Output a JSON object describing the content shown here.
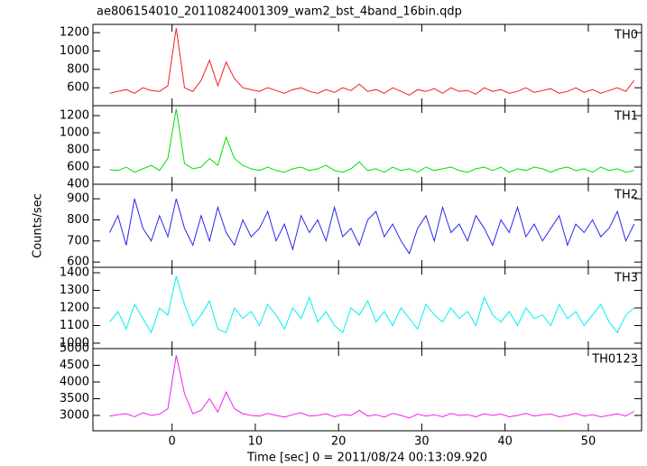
{
  "title": "ae806154010_20110824001309_wam2_bst_4band_16bin.qdp",
  "xlabel": "Time [sec] 0 = 2011/08/24 00:13:09.920",
  "ylabel": "Counts/sec",
  "chart_data": [
    {
      "type": "line",
      "label": "TH0",
      "color": "#f02020",
      "x": [
        -7.5,
        -6.5,
        -5.5,
        -4.5,
        -3.5,
        -2.5,
        -1.5,
        -0.5,
        0.5,
        1.5,
        2.5,
        3.5,
        4.5,
        5.5,
        6.5,
        7.5,
        8.5,
        9.5,
        10.5,
        11.5,
        12.5,
        13.5,
        14.5,
        15.5,
        16.5,
        17.5,
        18.5,
        19.5,
        20.5,
        21.5,
        22.5,
        23.5,
        24.5,
        25.5,
        26.5,
        27.5,
        28.5,
        29.5,
        30.5,
        31.5,
        32.5,
        33.5,
        34.5,
        35.5,
        36.5,
        37.5,
        38.5,
        39.5,
        40.5,
        41.5,
        42.5,
        43.5,
        44.5,
        45.5,
        46.5,
        47.5,
        48.5,
        49.5,
        50.5,
        51.5,
        52.5,
        53.5,
        54.5,
        55.5
      ],
      "values": [
        540,
        560,
        580,
        540,
        600,
        570,
        560,
        620,
        1250,
        600,
        560,
        680,
        900,
        620,
        880,
        700,
        600,
        580,
        560,
        600,
        570,
        540,
        580,
        600,
        560,
        540,
        580,
        550,
        600,
        570,
        640,
        560,
        580,
        540,
        600,
        560,
        520,
        580,
        560,
        590,
        540,
        600,
        560,
        570,
        530,
        600,
        560,
        580,
        540,
        560,
        600,
        550,
        570,
        590,
        540,
        560,
        600,
        550,
        580,
        540,
        570,
        600,
        560,
        680
      ],
      "xlim": [
        -9.5,
        56.4
      ],
      "xticks": [
        0,
        10,
        20,
        30,
        40,
        50
      ],
      "ylim": [
        405,
        1290
      ],
      "yticks": [
        600,
        800,
        1000,
        1200
      ]
    },
    {
      "type": "line",
      "label": "TH1",
      "color": "#00e000",
      "x": [
        -7.5,
        -6.5,
        -5.5,
        -4.5,
        -3.5,
        -2.5,
        -1.5,
        -0.5,
        0.5,
        1.5,
        2.5,
        3.5,
        4.5,
        5.5,
        6.5,
        7.5,
        8.5,
        9.5,
        10.5,
        11.5,
        12.5,
        13.5,
        14.5,
        15.5,
        16.5,
        17.5,
        18.5,
        19.5,
        20.5,
        21.5,
        22.5,
        23.5,
        24.5,
        25.5,
        26.5,
        27.5,
        28.5,
        29.5,
        30.5,
        31.5,
        32.5,
        33.5,
        34.5,
        35.5,
        36.5,
        37.5,
        38.5,
        39.5,
        40.5,
        41.5,
        42.5,
        43.5,
        44.5,
        45.5,
        46.5,
        47.5,
        48.5,
        49.5,
        50.5,
        51.5,
        52.5,
        53.5,
        54.5,
        55.5
      ],
      "values": [
        570,
        560,
        600,
        540,
        580,
        620,
        560,
        700,
        1280,
        640,
        580,
        600,
        700,
        620,
        950,
        700,
        620,
        580,
        560,
        600,
        560,
        540,
        580,
        600,
        560,
        580,
        620,
        560,
        540,
        580,
        660,
        560,
        580,
        540,
        600,
        560,
        580,
        540,
        600,
        560,
        580,
        600,
        560,
        540,
        580,
        600,
        560,
        600,
        540,
        580,
        560,
        600,
        580,
        540,
        580,
        600,
        560,
        580,
        540,
        600,
        560,
        580,
        540,
        560
      ],
      "xlim": [
        -9.5,
        56.4
      ],
      "xticks": [
        0,
        10,
        20,
        30,
        40,
        50
      ],
      "ylim": [
        400,
        1316
      ],
      "yticks": [
        400,
        600,
        800,
        1000,
        1200
      ]
    },
    {
      "type": "line",
      "label": "TH2",
      "color": "#2828f0",
      "x": [
        -7.5,
        -6.5,
        -5.5,
        -4.5,
        -3.5,
        -2.5,
        -1.5,
        -0.5,
        0.5,
        1.5,
        2.5,
        3.5,
        4.5,
        5.5,
        6.5,
        7.5,
        8.5,
        9.5,
        10.5,
        11.5,
        12.5,
        13.5,
        14.5,
        15.5,
        16.5,
        17.5,
        18.5,
        19.5,
        20.5,
        21.5,
        22.5,
        23.5,
        24.5,
        25.5,
        26.5,
        27.5,
        28.5,
        29.5,
        30.5,
        31.5,
        32.5,
        33.5,
        34.5,
        35.5,
        36.5,
        37.5,
        38.5,
        39.5,
        40.5,
        41.5,
        42.5,
        43.5,
        44.5,
        45.5,
        46.5,
        47.5,
        48.5,
        49.5,
        50.5,
        51.5,
        52.5,
        53.5,
        54.5,
        55.5
      ],
      "values": [
        740,
        820,
        680,
        900,
        760,
        700,
        820,
        720,
        900,
        760,
        680,
        820,
        700,
        860,
        740,
        680,
        800,
        720,
        760,
        840,
        700,
        780,
        660,
        820,
        740,
        800,
        700,
        860,
        720,
        760,
        680,
        800,
        840,
        720,
        780,
        700,
        640,
        760,
        820,
        700,
        860,
        740,
        780,
        700,
        820,
        760,
        680,
        800,
        740,
        860,
        720,
        780,
        700,
        760,
        820,
        680,
        780,
        740,
        800,
        720,
        760,
        840,
        700,
        780
      ],
      "xlim": [
        -9.5,
        56.4
      ],
      "xticks": [
        0,
        10,
        20,
        30,
        40,
        50
      ],
      "ylim": [
        575,
        969
      ],
      "yticks": [
        600,
        700,
        800,
        900
      ]
    },
    {
      "type": "line",
      "label": "TH3",
      "color": "#00f0f0",
      "x": [
        -7.5,
        -6.5,
        -5.5,
        -4.5,
        -3.5,
        -2.5,
        -1.5,
        -0.5,
        0.5,
        1.5,
        2.5,
        3.5,
        4.5,
        5.5,
        6.5,
        7.5,
        8.5,
        9.5,
        10.5,
        11.5,
        12.5,
        13.5,
        14.5,
        15.5,
        16.5,
        17.5,
        18.5,
        19.5,
        20.5,
        21.5,
        22.5,
        23.5,
        24.5,
        25.5,
        26.5,
        27.5,
        28.5,
        29.5,
        30.5,
        31.5,
        32.5,
        33.5,
        34.5,
        35.5,
        36.5,
        37.5,
        38.5,
        39.5,
        40.5,
        41.5,
        42.5,
        43.5,
        44.5,
        45.5,
        46.5,
        47.5,
        48.5,
        49.5,
        50.5,
        51.5,
        52.5,
        53.5,
        54.5,
        55.5
      ],
      "values": [
        1120,
        1180,
        1080,
        1220,
        1140,
        1060,
        1200,
        1160,
        1380,
        1220,
        1100,
        1160,
        1240,
        1080,
        1060,
        1200,
        1140,
        1180,
        1100,
        1220,
        1160,
        1080,
        1200,
        1140,
        1260,
        1120,
        1180,
        1100,
        1060,
        1200,
        1160,
        1240,
        1120,
        1180,
        1100,
        1200,
        1140,
        1080,
        1220,
        1160,
        1120,
        1200,
        1140,
        1180,
        1100,
        1260,
        1160,
        1120,
        1180,
        1100,
        1200,
        1140,
        1160,
        1100,
        1220,
        1140,
        1180,
        1100,
        1160,
        1220,
        1120,
        1060,
        1160,
        1200
      ],
      "xlim": [
        -9.5,
        56.4
      ],
      "xticks": [
        0,
        10,
        20,
        30,
        40,
        50
      ],
      "ylim": [
        969,
        1431
      ],
      "yticks": [
        1000,
        1100,
        1200,
        1300,
        1400
      ]
    },
    {
      "type": "line",
      "label": "TH0123",
      "color": "#f020f0",
      "x": [
        -7.5,
        -6.5,
        -5.5,
        -4.5,
        -3.5,
        -2.5,
        -1.5,
        -0.5,
        0.5,
        1.5,
        2.5,
        3.5,
        4.5,
        5.5,
        6.5,
        7.5,
        8.5,
        9.5,
        10.5,
        11.5,
        12.5,
        13.5,
        14.5,
        15.5,
        16.5,
        17.5,
        18.5,
        19.5,
        20.5,
        21.5,
        22.5,
        23.5,
        24.5,
        25.5,
        26.5,
        27.5,
        28.5,
        29.5,
        30.5,
        31.5,
        32.5,
        33.5,
        34.5,
        35.5,
        36.5,
        37.5,
        38.5,
        39.5,
        40.5,
        41.5,
        42.5,
        43.5,
        44.5,
        45.5,
        46.5,
        47.5,
        48.5,
        49.5,
        50.5,
        51.5,
        52.5,
        53.5,
        54.5,
        55.5
      ],
      "values": [
        2980,
        3020,
        3050,
        2960,
        3080,
        3000,
        3040,
        3200,
        4800,
        3650,
        3050,
        3150,
        3500,
        3100,
        3700,
        3200,
        3050,
        3000,
        2980,
        3060,
        3000,
        2950,
        3020,
        3080,
        2980,
        3000,
        3050,
        2960,
        3020,
        3000,
        3150,
        2980,
        3020,
        2950,
        3060,
        3000,
        2920,
        3040,
        2980,
        3020,
        2960,
        3060,
        3000,
        3020,
        2960,
        3050,
        3000,
        3040,
        2960,
        3000,
        3060,
        2980,
        3020,
        3040,
        2960,
        3000,
        3060,
        2980,
        3020,
        2960,
        3000,
        3050,
        2980,
        3120
      ],
      "xlim": [
        -9.5,
        56.4
      ],
      "xticks": [
        0,
        10,
        20,
        30,
        40,
        50
      ],
      "ylim": [
        2540,
        5000
      ],
      "yticks": [
        3000,
        3500,
        4000,
        4500,
        5000
      ]
    }
  ]
}
